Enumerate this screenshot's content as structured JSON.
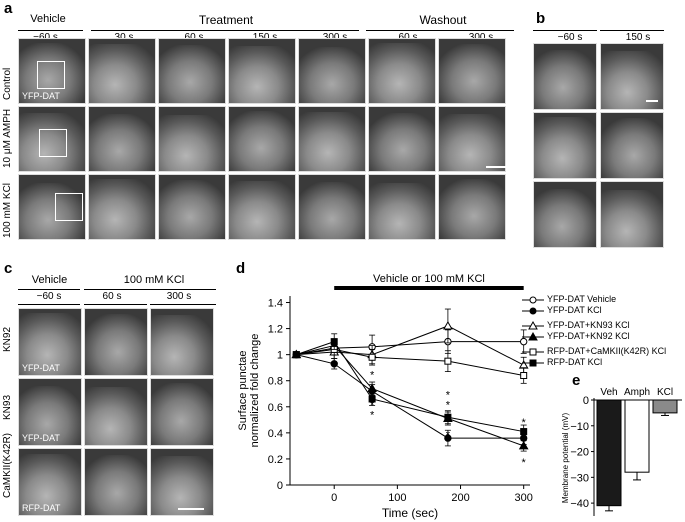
{
  "panels": {
    "a": "a",
    "b": "b",
    "c": "c",
    "d": "d",
    "e": "e"
  },
  "panel_a": {
    "group_vehicle": "Vehicle",
    "group_treatment": "Treatment",
    "group_washout": "Washout",
    "times": [
      "−60 s",
      "30 s",
      "60 s",
      "150 s",
      "300 s",
      "60 s",
      "300 s"
    ],
    "rows": [
      "Control",
      "10 μM AMPH",
      "100 mM KCl"
    ],
    "tile_label": "YFP-DAT"
  },
  "panel_b": {
    "times": [
      "−60 s",
      "150 s"
    ]
  },
  "panel_c": {
    "group_vehicle": "Vehicle",
    "group_kcl": "100 mM KCl",
    "times": [
      "−60 s",
      "60 s",
      "300 s"
    ],
    "rows": [
      "KN92",
      "KN93",
      "CaMKII(K42R)"
    ],
    "tile_labels": [
      "YFP-DAT",
      "YFP-DAT",
      "RFP-DAT"
    ]
  },
  "chart_data": [
    {
      "type": "line",
      "panel": "d",
      "bar_label": "Vehicle or 100 mM KCl",
      "xlabel": "Time (sec)",
      "ylabel_line1": "Surface punctae",
      "ylabel_line2": "normalized fold change",
      "xlim": [
        -70,
        310
      ],
      "ylim": [
        0,
        1.45
      ],
      "xticks": [
        0,
        100,
        200,
        300
      ],
      "yticks": [
        0,
        0.2,
        0.4,
        0.6,
        0.8,
        1.0,
        1.2,
        1.4
      ],
      "ytick_labels": [
        "0",
        "0.2",
        "0.4",
        "0.6",
        "0.8",
        "1",
        "1.2",
        "1.4"
      ],
      "x": [
        -60,
        0,
        60,
        180,
        300
      ],
      "series": [
        {
          "name": "YFP-DAT Vehicle",
          "marker": "circle-open",
          "values": [
            1.0,
            1.05,
            1.06,
            1.1,
            1.1
          ],
          "err": [
            0.01,
            0.05,
            0.09,
            0.09,
            0.09
          ]
        },
        {
          "name": "YFP-DAT KCl",
          "marker": "circle-filled",
          "values": [
            1.0,
            0.93,
            0.72,
            0.36,
            0.36
          ],
          "err": [
            0.01,
            0.04,
            0.05,
            0.06,
            0.05
          ]
        },
        {
          "name": "YFP-DAT+KN93 KCl",
          "marker": "triangle-open",
          "values": [
            1.0,
            1.02,
            1.0,
            1.22,
            0.92
          ],
          "err": [
            0.01,
            0.08,
            0.07,
            0.13,
            0.06
          ]
        },
        {
          "name": "YFP-DAT+KN92 KCl",
          "marker": "triangle-filled",
          "values": [
            1.0,
            1.07,
            0.74,
            0.51,
            0.3
          ],
          "err": [
            0.01,
            0.05,
            0.05,
            0.05,
            0.04
          ]
        },
        {
          "name": "RFP-DAT+CaMKII(K42R) KCl",
          "marker": "square-open",
          "values": [
            1.0,
            1.04,
            0.98,
            0.95,
            0.84
          ],
          "err": [
            0.01,
            0.07,
            0.06,
            0.08,
            0.06
          ]
        },
        {
          "name": "RFP-DAT KCl",
          "marker": "square-filled",
          "values": [
            1.0,
            1.1,
            0.66,
            0.52,
            0.41
          ],
          "err": [
            0.01,
            0.06,
            0.05,
            0.05,
            0.05
          ]
        }
      ],
      "annotations": [
        {
          "x": 60,
          "text": "*",
          "level": "above"
        },
        {
          "x": 60,
          "text": "*",
          "level": "below"
        },
        {
          "x": 60,
          "text": "*",
          "level": "below2"
        },
        {
          "x": 180,
          "text": "*",
          "level": "above"
        },
        {
          "x": 180,
          "text": "*",
          "level": "above2"
        },
        {
          "x": 180,
          "text": "*",
          "level": "below"
        },
        {
          "x": 300,
          "text": "*",
          "level": "above"
        },
        {
          "x": 300,
          "text": "*",
          "level": "above2"
        },
        {
          "x": 300,
          "text": "*",
          "level": "below"
        }
      ]
    },
    {
      "type": "bar",
      "panel": "e",
      "categories": [
        "Veh",
        "Amph",
        "KCl"
      ],
      "values": [
        -41,
        -28,
        -5
      ],
      "err": [
        2,
        3,
        1
      ],
      "colors": [
        "#1a1a1a",
        "#ffffff",
        "#8a8a8a"
      ],
      "ylabel": "Membrane potential (mV)",
      "ylim": [
        -45,
        0
      ],
      "yticks": [
        0,
        -10,
        -20,
        -30,
        -40
      ],
      "ytick_labels": [
        "0",
        "−10",
        "−20",
        "−30",
        "−40"
      ]
    }
  ]
}
